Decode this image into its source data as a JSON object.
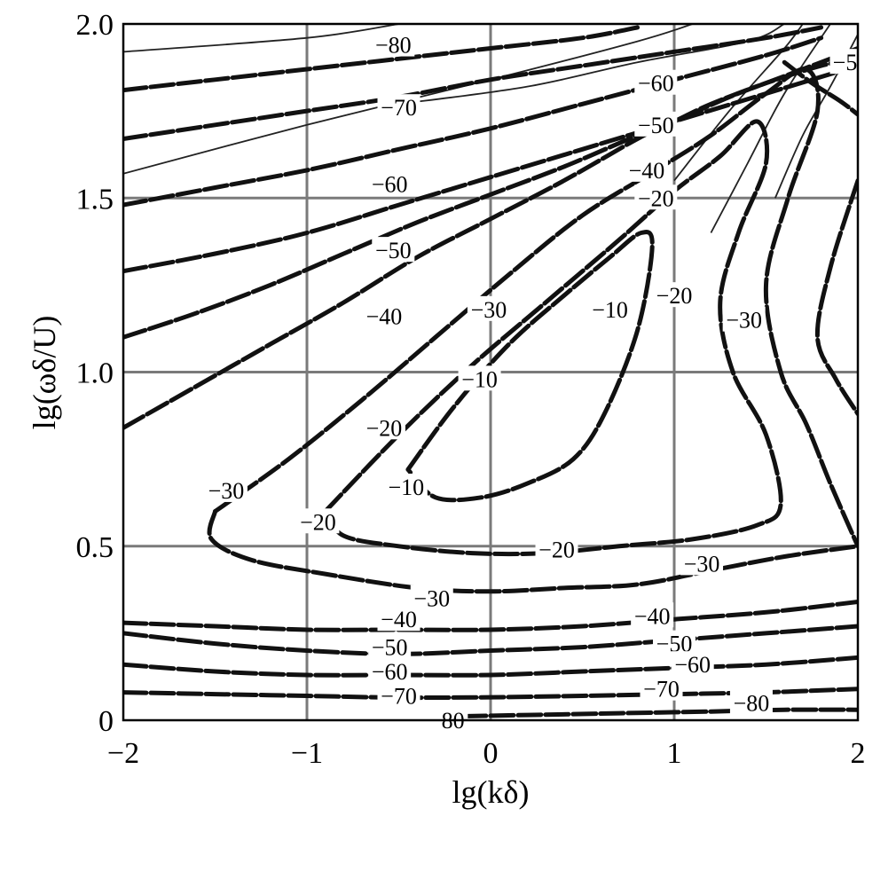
{
  "chart_data": {
    "type": "contour",
    "xlabel": "lg(kδ)",
    "ylabel": "lg(ωδ/U)",
    "xlim": [
      -2,
      2
    ],
    "ylim": [
      0,
      2.0
    ],
    "xticks": [
      -2,
      -1,
      0,
      1,
      2
    ],
    "yticks": [
      0,
      0.5,
      1.0,
      1.5,
      2.0
    ],
    "xtick_labels": [
      "−2",
      "−1",
      "0",
      "1",
      "2"
    ],
    "ytick_labels": [
      "0",
      "0.5",
      "1.0",
      "1.5",
      "2.0"
    ],
    "grid": true,
    "contours": [
      {
        "level": -10,
        "points": [
          [
            -0.45,
            0.72
          ],
          [
            -0.2,
            0.9
          ],
          [
            0.1,
            1.08
          ],
          [
            0.4,
            1.22
          ],
          [
            0.65,
            1.33
          ],
          [
            0.82,
            1.4
          ],
          [
            0.88,
            1.36
          ],
          [
            0.8,
            1.12
          ],
          [
            0.62,
            0.88
          ],
          [
            0.45,
            0.75
          ],
          [
            0.2,
            0.68
          ],
          [
            -0.05,
            0.64
          ],
          [
            -0.3,
            0.64
          ],
          [
            -0.45,
            0.72
          ]
        ]
      },
      {
        "level": -20,
        "points": [
          [
            -0.9,
            0.6
          ],
          [
            -0.5,
            0.82
          ],
          [
            -0.1,
            1.02
          ],
          [
            0.3,
            1.2
          ],
          [
            0.7,
            1.38
          ],
          [
            1.0,
            1.52
          ],
          [
            1.25,
            1.62
          ],
          [
            1.45,
            1.72
          ],
          [
            1.5,
            1.6
          ],
          [
            1.35,
            1.4
          ],
          [
            1.25,
            1.2
          ],
          [
            1.32,
            1.0
          ],
          [
            1.5,
            0.82
          ],
          [
            1.58,
            0.62
          ],
          [
            1.45,
            0.56
          ],
          [
            1.1,
            0.52
          ],
          [
            0.7,
            0.5
          ],
          [
            0.3,
            0.48
          ],
          [
            -0.1,
            0.48
          ],
          [
            -0.5,
            0.5
          ],
          [
            -0.8,
            0.53
          ],
          [
            -0.9,
            0.6
          ]
        ]
      },
      {
        "level": -30,
        "points": [
          [
            -1.5,
            0.6
          ],
          [
            -1.1,
            0.75
          ],
          [
            -0.7,
            0.92
          ],
          [
            -0.3,
            1.1
          ],
          [
            0.1,
            1.28
          ],
          [
            0.5,
            1.45
          ],
          [
            0.9,
            1.58
          ],
          [
            1.2,
            1.68
          ],
          [
            1.5,
            1.8
          ],
          [
            1.72,
            1.87
          ],
          [
            1.78,
            1.75
          ],
          [
            1.62,
            1.5
          ],
          [
            1.5,
            1.25
          ],
          [
            1.58,
            1.0
          ],
          [
            1.72,
            0.85
          ],
          [
            1.85,
            0.68
          ],
          [
            2.0,
            0.5
          ]
        ]
      },
      {
        "level": -30,
        "points": [
          [
            -1.5,
            0.6
          ],
          [
            -1.52,
            0.52
          ],
          [
            -1.3,
            0.46
          ],
          [
            -0.9,
            0.42
          ],
          [
            -0.4,
            0.38
          ],
          [
            0,
            0.37
          ],
          [
            0.4,
            0.38
          ],
          [
            0.8,
            0.39
          ],
          [
            1.2,
            0.43
          ],
          [
            1.6,
            0.47
          ],
          [
            2.0,
            0.5
          ]
        ]
      },
      {
        "level": -30,
        "points": [
          [
            2.0,
            1.55
          ],
          [
            1.85,
            1.3
          ],
          [
            1.78,
            1.1
          ],
          [
            1.88,
            0.98
          ],
          [
            2.0,
            0.88
          ]
        ]
      },
      {
        "level": -40,
        "points": [
          [
            -2.0,
            0.84
          ],
          [
            -1.6,
            0.96
          ],
          [
            -1.2,
            1.08
          ],
          [
            -0.8,
            1.2
          ],
          [
            -0.4,
            1.33
          ],
          [
            0,
            1.44
          ],
          [
            0.4,
            1.55
          ],
          [
            0.8,
            1.67
          ],
          [
            1.0,
            1.72
          ],
          [
            1.2,
            1.77
          ],
          [
            1.5,
            1.83
          ],
          [
            1.8,
            1.88
          ],
          [
            2.0,
            1.9
          ]
        ]
      },
      {
        "level": -40,
        "points": [
          [
            -2.0,
            0.28
          ],
          [
            -1.5,
            0.27
          ],
          [
            -1.0,
            0.26
          ],
          [
            -0.5,
            0.26
          ],
          [
            0,
            0.26
          ],
          [
            0.5,
            0.27
          ],
          [
            1.0,
            0.29
          ],
          [
            1.5,
            0.31
          ],
          [
            2.0,
            0.34
          ]
        ]
      },
      {
        "level": -50,
        "points": [
          [
            -2.0,
            1.1
          ],
          [
            -1.6,
            1.17
          ],
          [
            -1.2,
            1.25
          ],
          [
            -0.8,
            1.34
          ],
          [
            -0.4,
            1.43
          ],
          [
            0,
            1.51
          ],
          [
            0.4,
            1.59
          ],
          [
            0.8,
            1.68
          ],
          [
            1.0,
            1.72
          ],
          [
            1.3,
            1.79
          ],
          [
            1.6,
            1.85
          ],
          [
            2.0,
            1.93
          ]
        ]
      },
      {
        "level": -50,
        "points": [
          [
            -2.0,
            0.25
          ],
          [
            -1.5,
            0.22
          ],
          [
            -1.0,
            0.2
          ],
          [
            -0.5,
            0.19
          ],
          [
            0,
            0.2
          ],
          [
            0.5,
            0.21
          ],
          [
            1.0,
            0.23
          ],
          [
            1.5,
            0.25
          ],
          [
            2.0,
            0.27
          ]
        ]
      },
      {
        "level": -60,
        "points": [
          [
            -2.0,
            1.29
          ],
          [
            -1.5,
            1.34
          ],
          [
            -1.0,
            1.4
          ],
          [
            -0.5,
            1.48
          ],
          [
            0,
            1.56
          ],
          [
            0.5,
            1.64
          ],
          [
            1.0,
            1.72
          ],
          [
            1.5,
            1.8
          ],
          [
            2.0,
            1.88
          ]
        ]
      },
      {
        "level": -60,
        "points": [
          [
            -2.0,
            0.16
          ],
          [
            -1.5,
            0.14
          ],
          [
            -1.0,
            0.13
          ],
          [
            -0.5,
            0.13
          ],
          [
            0,
            0.13
          ],
          [
            0.5,
            0.14
          ],
          [
            1.0,
            0.15
          ],
          [
            1.5,
            0.16
          ],
          [
            2.0,
            0.18
          ]
        ]
      },
      {
        "level": -60,
        "points": [
          [
            -2.0,
            1.67
          ],
          [
            -1.5,
            1.71
          ],
          [
            -1.0,
            1.75
          ],
          [
            -0.5,
            1.79
          ],
          [
            0,
            1.84
          ],
          [
            0.5,
            1.88
          ],
          [
            1.0,
            1.92
          ],
          [
            1.5,
            1.96
          ],
          [
            1.8,
            1.99
          ]
        ]
      },
      {
        "level": -70,
        "points": [
          [
            -2.0,
            1.48
          ],
          [
            -1.5,
            1.53
          ],
          [
            -1.0,
            1.58
          ],
          [
            -0.5,
            1.64
          ],
          [
            0,
            1.7
          ],
          [
            0.5,
            1.77
          ],
          [
            1.0,
            1.84
          ],
          [
            1.5,
            1.91
          ],
          [
            1.8,
            1.96
          ]
        ]
      },
      {
        "level": -70,
        "points": [
          [
            -2.0,
            0.08
          ],
          [
            -1.5,
            0.075
          ],
          [
            -1.0,
            0.07
          ],
          [
            -0.5,
            0.065
          ],
          [
            0,
            0.066
          ],
          [
            0.5,
            0.07
          ],
          [
            1.0,
            0.075
          ],
          [
            1.5,
            0.08
          ],
          [
            2.0,
            0.09
          ]
        ]
      },
      {
        "level": -80,
        "points": [
          [
            -2.0,
            1.81
          ],
          [
            -1.5,
            1.84
          ],
          [
            -1.0,
            1.87
          ],
          [
            -0.5,
            1.9
          ],
          [
            0,
            1.93
          ],
          [
            0.5,
            1.96
          ],
          [
            0.8,
            1.99
          ]
        ]
      },
      {
        "level": -80,
        "points": [
          [
            -0.3,
            0.01
          ],
          [
            0.2,
            0.015
          ],
          [
            0.7,
            0.02
          ],
          [
            1.2,
            0.025
          ],
          [
            1.6,
            0.03
          ],
          [
            2.0,
            0.03
          ]
        ]
      },
      {
        "level": -50,
        "points": [
          [
            1.6,
            1.89
          ],
          [
            1.75,
            1.83
          ],
          [
            1.9,
            1.78
          ],
          [
            2.0,
            1.74
          ]
        ]
      }
    ],
    "thin_lines": [
      [
        [
          -2.0,
          1.57
        ],
        [
          -1.0,
          1.71
        ],
        [
          0,
          1.84
        ],
        [
          0.8,
          1.95
        ],
        [
          1.1,
          2.0
        ]
      ],
      [
        [
          -2.0,
          1.92
        ],
        [
          -1.0,
          1.96
        ],
        [
          -0.5,
          2.0
        ]
      ],
      [
        [
          -0.5,
          1.77
        ],
        [
          0.2,
          1.82
        ],
        [
          0.8,
          1.89
        ],
        [
          1.4,
          1.95
        ],
        [
          1.6,
          2.0
        ]
      ],
      [
        [
          1.2,
          1.4
        ],
        [
          1.4,
          1.6
        ],
        [
          1.6,
          1.8
        ],
        [
          1.85,
          2.0
        ]
      ],
      [
        [
          1.55,
          1.5
        ],
        [
          1.7,
          1.68
        ],
        [
          1.85,
          1.82
        ],
        [
          2.0,
          1.97
        ]
      ],
      [
        [
          1.0,
          1.55
        ],
        [
          1.3,
          1.75
        ],
        [
          1.6,
          1.93
        ],
        [
          1.7,
          2.0
        ]
      ]
    ],
    "labels": [
      {
        "text": "−80",
        "x": -0.53,
        "y": 1.94
      },
      {
        "text": "−70",
        "x": -0.5,
        "y": 1.76
      },
      {
        "text": "−60",
        "x": 0.9,
        "y": 1.83
      },
      {
        "text": "−50",
        "x": 0.9,
        "y": 1.71
      },
      {
        "text": "−5",
        "x": 1.93,
        "y": 1.89
      },
      {
        "text": "−40",
        "x": 0.85,
        "y": 1.58
      },
      {
        "text": "−60",
        "x": -0.55,
        "y": 1.54
      },
      {
        "text": "−20",
        "x": 0.9,
        "y": 1.5
      },
      {
        "text": "−50",
        "x": -0.53,
        "y": 1.35
      },
      {
        "text": "−20",
        "x": 1.0,
        "y": 1.22
      },
      {
        "text": "−30",
        "x": -0.01,
        "y": 1.18
      },
      {
        "text": "−10",
        "x": 0.65,
        "y": 1.18
      },
      {
        "text": "−40",
        "x": -0.58,
        "y": 1.16
      },
      {
        "text": "−30",
        "x": 1.38,
        "y": 1.15
      },
      {
        "text": "−10",
        "x": -0.06,
        "y": 0.98
      },
      {
        "text": "−20",
        "x": -0.58,
        "y": 0.84
      },
      {
        "text": "−10",
        "x": -0.46,
        "y": 0.67
      },
      {
        "text": "−30",
        "x": -1.44,
        "y": 0.66
      },
      {
        "text": "−20",
        "x": -0.94,
        "y": 0.57
      },
      {
        "text": "−20",
        "x": 0.36,
        "y": 0.49
      },
      {
        "text": "−30",
        "x": 1.15,
        "y": 0.45
      },
      {
        "text": "−30",
        "x": -0.32,
        "y": 0.35
      },
      {
        "text": "−40",
        "x": 0.88,
        "y": 0.3
      },
      {
        "text": "−40",
        "x": -0.5,
        "y": 0.29
      },
      {
        "text": "−50",
        "x": 1.0,
        "y": 0.22
      },
      {
        "text": "−50",
        "x": -0.55,
        "y": 0.21
      },
      {
        "text": "−60",
        "x": 1.1,
        "y": 0.16
      },
      {
        "text": "−60",
        "x": -0.55,
        "y": 0.14
      },
      {
        "text": "−70",
        "x": 0.93,
        "y": 0.09
      },
      {
        "text": "−70",
        "x": -0.5,
        "y": 0.07
      },
      {
        "text": "−80",
        "x": 1.42,
        "y": 0.05
      },
      {
        "text": "−80",
        "x": -0.24,
        "y": 0.0
      }
    ]
  }
}
